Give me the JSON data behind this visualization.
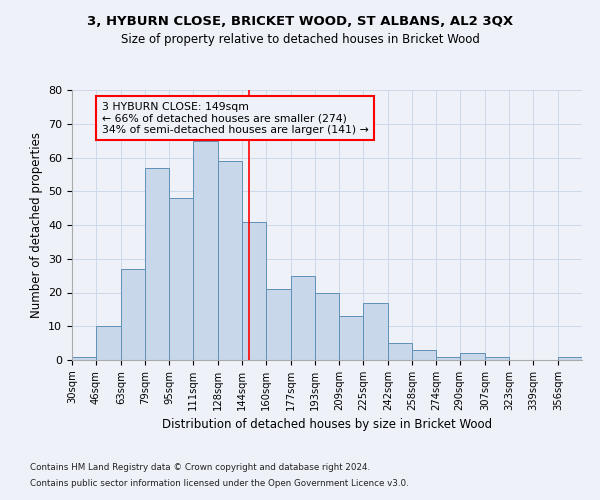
{
  "title1": "3, HYBURN CLOSE, BRICKET WOOD, ST ALBANS, AL2 3QX",
  "title2": "Size of property relative to detached houses in Bricket Wood",
  "xlabel": "Distribution of detached houses by size in Bricket Wood",
  "ylabel": "Number of detached properties",
  "bin_labels": [
    "30sqm",
    "46sqm",
    "63sqm",
    "79sqm",
    "95sqm",
    "111sqm",
    "128sqm",
    "144sqm",
    "160sqm",
    "177sqm",
    "193sqm",
    "209sqm",
    "225sqm",
    "242sqm",
    "258sqm",
    "274sqm",
    "290sqm",
    "307sqm",
    "323sqm",
    "339sqm",
    "356sqm"
  ],
  "hist_values": [
    1,
    10,
    27,
    57,
    48,
    65,
    59,
    41,
    21,
    25,
    20,
    13,
    17,
    5,
    3,
    1,
    2,
    1,
    0,
    0,
    1
  ],
  "bin_edges": [
    30,
    46,
    63,
    79,
    95,
    111,
    128,
    144,
    160,
    177,
    193,
    209,
    225,
    242,
    258,
    274,
    290,
    307,
    323,
    339,
    356,
    372
  ],
  "bar_color": "#c8d8ea",
  "bar_edge_color": "#6090b8",
  "vline_x": 149,
  "vline_color": "red",
  "annotation_line1": "3 HYBURN CLOSE: 149sqm",
  "annotation_line2": "← 66% of detached houses are smaller (274)",
  "annotation_line3": "34% of semi-detached houses are larger (141) →",
  "annotation_box_color": "red",
  "ylim": [
    0,
    80
  ],
  "yticks": [
    0,
    10,
    20,
    30,
    40,
    50,
    60,
    70,
    80
  ],
  "grid_color": "#ccd8e8",
  "background_color": "#eef2f8",
  "footnote1": "Contains HM Land Registry data © Crown copyright and database right 2024.",
  "footnote2": "Contains public sector information licensed under the Open Government Licence v3.0."
}
